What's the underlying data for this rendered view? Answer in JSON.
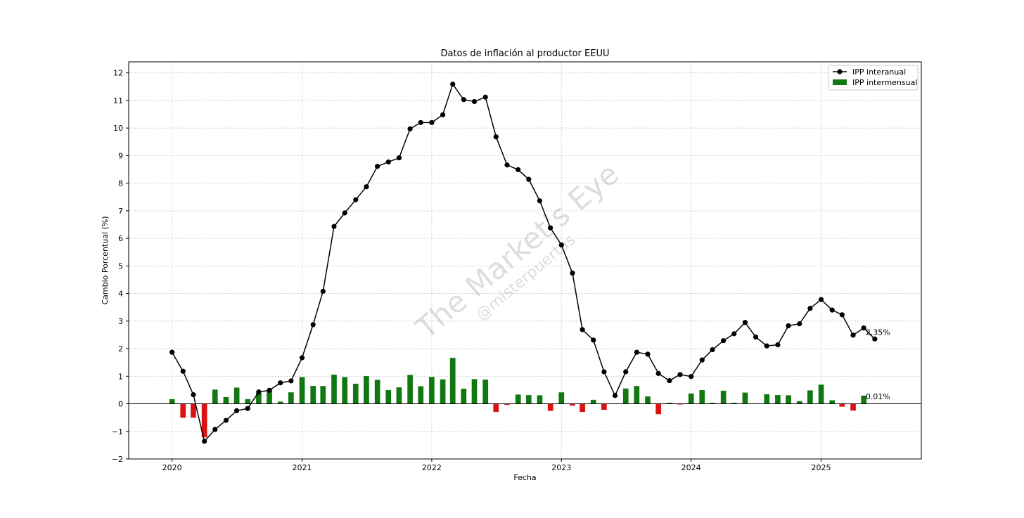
{
  "chart_data": {
    "type": "bar",
    "title": "Datos de inflación al productor EEUU",
    "xlabel": "Fecha",
    "ylabel": "Cambio Porcentual (%)",
    "xlim": [
      "2019-09-01",
      "2025-10-10"
    ],
    "ylim": [
      -2,
      12.4
    ],
    "x_ticks": [
      "2020",
      "2021",
      "2022",
      "2023",
      "2024",
      "2025"
    ],
    "y_ticks": [
      -2,
      -1,
      0,
      1,
      2,
      3,
      4,
      5,
      6,
      7,
      8,
      9,
      10,
      11,
      12
    ],
    "grid": true,
    "legend_position": "top-right",
    "watermark": [
      "The Market's Eye",
      "@misterpuertas"
    ],
    "start_month": "2020-01",
    "series": [
      {
        "name": "IPP interanual",
        "kind": "line",
        "color": "#000000",
        "values": [
          1.87,
          1.18,
          0.33,
          -1.36,
          -0.93,
          -0.6,
          -0.25,
          -0.17,
          0.43,
          0.49,
          0.76,
          0.83,
          1.67,
          2.87,
          4.08,
          6.43,
          6.92,
          7.4,
          7.87,
          8.61,
          8.77,
          8.92,
          9.97,
          10.2,
          10.2,
          10.48,
          11.59,
          11.03,
          10.96,
          11.12,
          9.68,
          8.66,
          8.49,
          8.14,
          7.36,
          6.38,
          5.76,
          4.74,
          2.69,
          2.31,
          1.16,
          0.3,
          1.16,
          1.87,
          1.8,
          1.1,
          0.84,
          1.06,
          0.99,
          1.59,
          1.96,
          2.29,
          2.54,
          2.95,
          2.42,
          2.1,
          2.14,
          2.83,
          2.9,
          3.46,
          3.78,
          3.4,
          3.23,
          2.49,
          2.75,
          2.35
        ]
      },
      {
        "name": "IPP intermensual",
        "kind": "bar",
        "color_positive": "#117711",
        "color_negative": "#dd1111",
        "values": [
          0.17,
          -0.51,
          -0.51,
          -1.22,
          0.52,
          0.25,
          0.59,
          0.17,
          0.4,
          0.48,
          0.08,
          0.42,
          0.97,
          0.65,
          0.65,
          1.06,
          0.97,
          0.73,
          1.01,
          0.87,
          0.5,
          0.6,
          1.05,
          0.64,
          0.98,
          0.89,
          1.67,
          0.55,
          0.9,
          0.88,
          -0.3,
          -0.04,
          0.34,
          0.32,
          0.31,
          -0.26,
          0.42,
          -0.07,
          -0.3,
          0.15,
          -0.22,
          0.0,
          0.56,
          0.65,
          0.27,
          -0.38,
          0.04,
          -0.03,
          0.38,
          0.5,
          0.04,
          0.48,
          0.04,
          0.41,
          0.02,
          0.35,
          0.32,
          0.31,
          0.1,
          0.49,
          0.7,
          0.13,
          -0.11,
          -0.25,
          0.3,
          0.01
        ]
      }
    ],
    "annotations": [
      {
        "text": "2.35%",
        "x": "2025-06",
        "y": 2.35
      },
      {
        "text": "0.01%",
        "x": "2025-06",
        "y": 0.01
      }
    ]
  }
}
